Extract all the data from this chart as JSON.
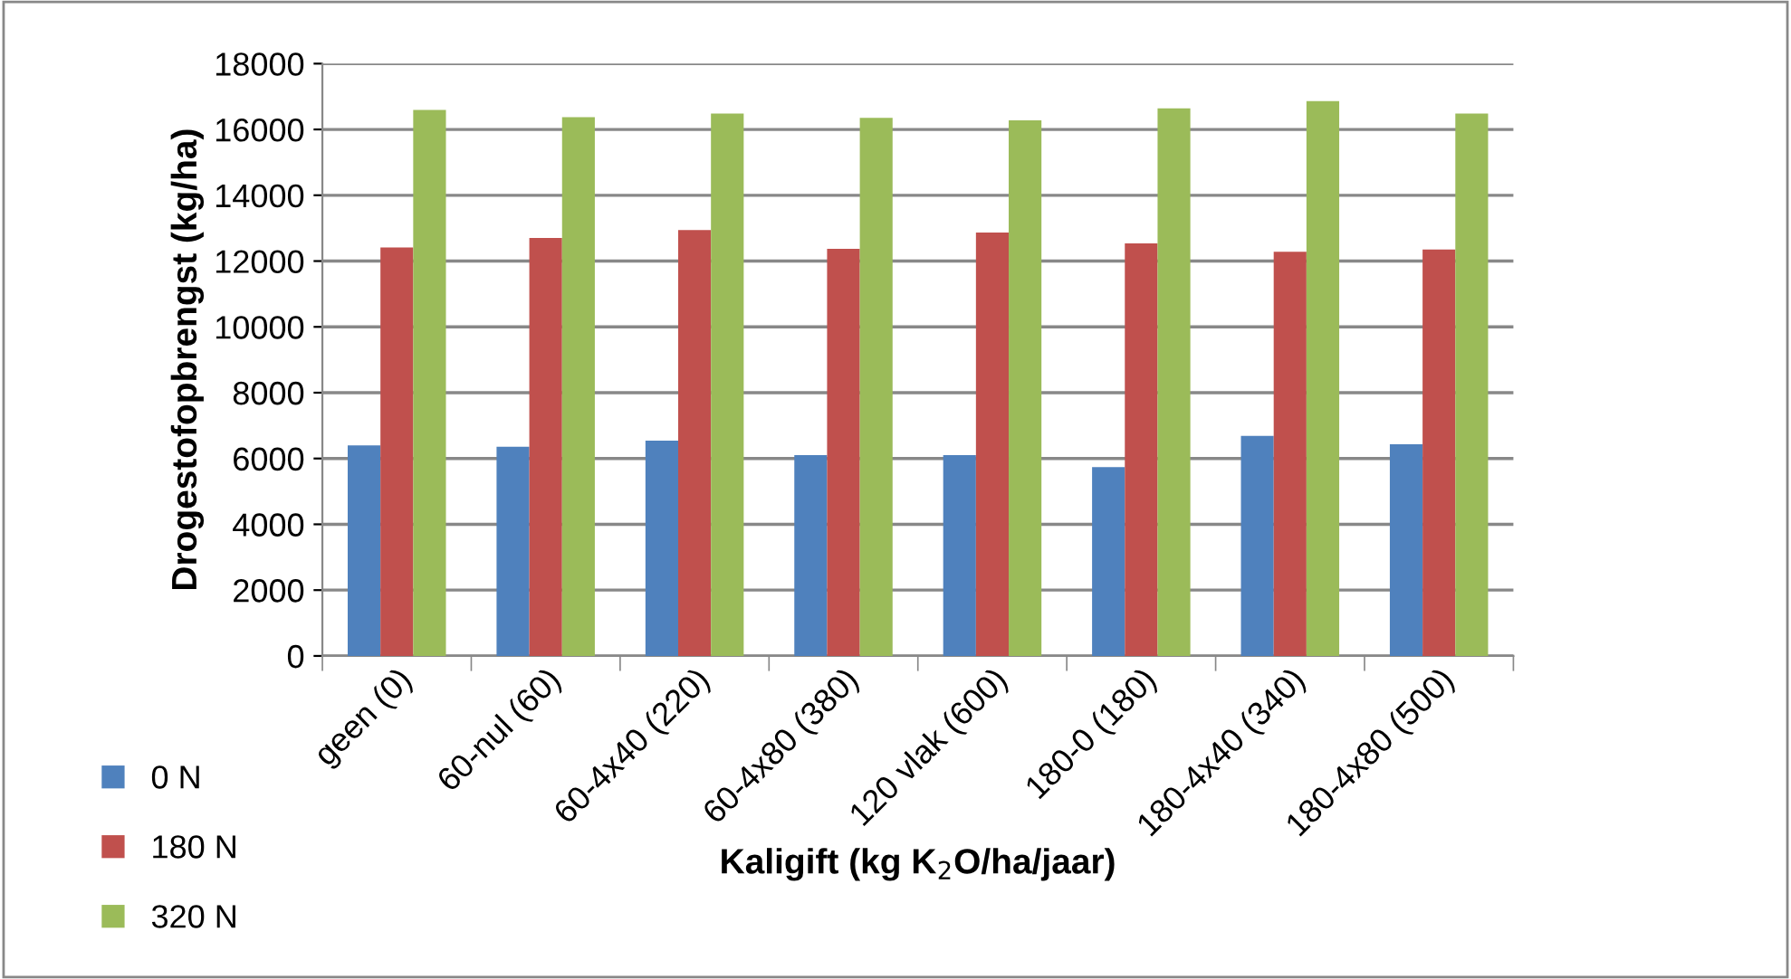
{
  "chart_data": {
    "type": "bar",
    "xlabel": "Kaligift (kg K$_{2}$O/ha/jaar)",
    "ylabel": "Drogestofopbrengst (kg/ha)",
    "categories": [
      "geen (0)",
      "60-nul (60)",
      "60-4x40 (220)",
      "60-4x80 (380)",
      "120 vlak (600)",
      "180-0 (180)",
      "180-4x40 (340)",
      "180-4x80 (500)"
    ],
    "series": [
      {
        "name": "0 N",
        "color": "#4f81bd",
        "values": [
          6400,
          6360,
          6540,
          6100,
          6100,
          5740,
          6690,
          6430
        ]
      },
      {
        "name": "180 N",
        "color": "#c0504d",
        "values": [
          12410,
          12700,
          12940,
          12370,
          12870,
          12540,
          12280,
          12350
        ]
      },
      {
        "name": "320 N",
        "color": "#9bbb59",
        "values": [
          16590,
          16370,
          16480,
          16350,
          16280,
          16640,
          16860,
          16480
        ]
      }
    ],
    "ylim": [
      0,
      18000
    ],
    "yticks": [
      0,
      2000,
      4000,
      6000,
      8000,
      10000,
      12000,
      14000,
      16000,
      18000
    ],
    "grid": "y",
    "legend": "bottom left"
  }
}
